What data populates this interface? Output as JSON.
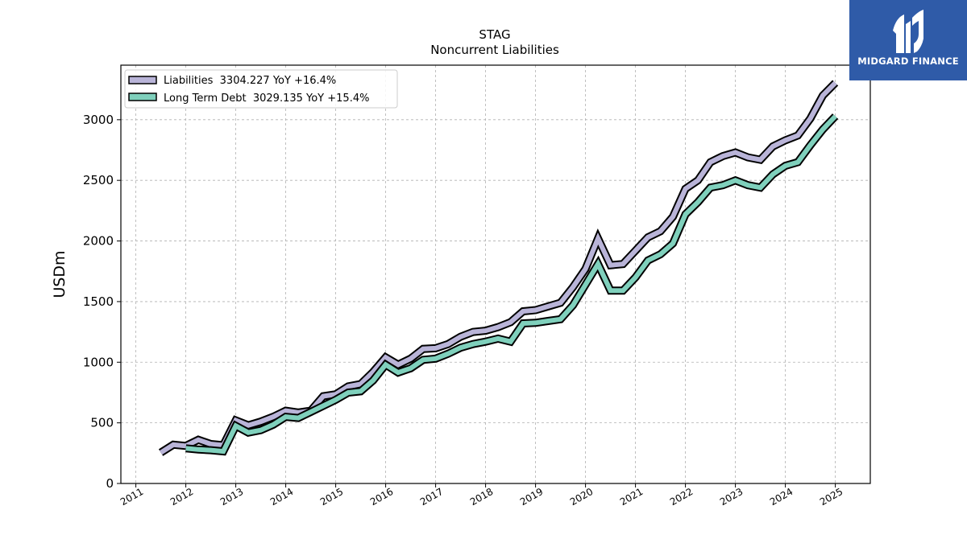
{
  "chart_data": {
    "type": "line",
    "title": "STAG",
    "subtitle": "Noncurrent  Liabilities",
    "ylabel": "USDm",
    "xlabel": "",
    "ylim": [
      0,
      3450
    ],
    "xlim": [
      2010.7,
      2025.7
    ],
    "yticks": [
      0,
      500,
      1000,
      1500,
      2000,
      2500,
      3000
    ],
    "yticklabels": [
      "0",
      "500",
      "1000",
      "1500",
      "2000",
      "2500",
      "3000"
    ],
    "xticks": [
      2011,
      2012,
      2013,
      2014,
      2015,
      2016,
      2017,
      2018,
      2019,
      2020,
      2021,
      2022,
      2023,
      2024,
      2025
    ],
    "xticklabels": [
      "2011",
      "2012",
      "2013",
      "2014",
      "2015",
      "2016",
      "2017",
      "2018",
      "2019",
      "2020",
      "2021",
      "2022",
      "2023",
      "2024",
      "2025"
    ],
    "grid": true,
    "legend_position": "upper-left",
    "series": [
      {
        "name": "Liabilities  3304.227 YoY +16.4%",
        "color": "#b9b4d8",
        "x": [
          2011.5,
          2011.75,
          2012.0,
          2012.25,
          2012.5,
          2012.75,
          2013.0,
          2013.25,
          2013.5,
          2013.75,
          2014.0,
          2014.25,
          2014.5,
          2014.75,
          2015.0,
          2015.25,
          2015.5,
          2015.75,
          2016.0,
          2016.25,
          2016.5,
          2016.75,
          2017.0,
          2017.25,
          2017.5,
          2017.75,
          2018.0,
          2018.25,
          2018.5,
          2018.75,
          2019.0,
          2019.25,
          2019.5,
          2019.75,
          2020.0,
          2020.25,
          2020.5,
          2020.75,
          2021.0,
          2021.25,
          2021.5,
          2021.75,
          2022.0,
          2022.25,
          2022.5,
          2022.75,
          2023.0,
          2023.25,
          2023.5,
          2023.75,
          2024.0,
          2024.25,
          2024.5,
          2024.75,
          2025.0
        ],
        "values": [
          255,
          320,
          310,
          360,
          325,
          315,
          520,
          480,
          510,
          550,
          600,
          585,
          600,
          720,
          735,
          800,
          820,
          920,
          1040,
          980,
          1030,
          1110,
          1115,
          1150,
          1210,
          1250,
          1260,
          1290,
          1330,
          1420,
          1430,
          1460,
          1490,
          1620,
          1770,
          2020,
          1800,
          1810,
          1920,
          2030,
          2080,
          2200,
          2430,
          2500,
          2650,
          2700,
          2730,
          2690,
          2670,
          2780,
          2830,
          2870,
          3010,
          3200,
          3304
        ]
      },
      {
        "name": "Long Term Debt  3029.135 YoY +15.4%",
        "color": "#7fd0bc",
        "x": [
          2012.0,
          2012.25,
          2012.5,
          2012.75,
          2013.0,
          2013.25,
          2013.5,
          2013.75,
          2014.0,
          2014.25,
          2014.5,
          2014.75,
          2015.0,
          2015.25,
          2015.5,
          2015.75,
          2016.0,
          2016.25,
          2016.5,
          2016.75,
          2017.0,
          2017.25,
          2017.5,
          2017.75,
          2018.0,
          2018.25,
          2018.5,
          2018.75,
          2019.0,
          2019.25,
          2019.5,
          2019.75,
          2020.0,
          2020.25,
          2020.5,
          2020.75,
          2021.0,
          2021.25,
          2021.5,
          2021.75,
          2022.0,
          2022.25,
          2022.5,
          2022.75,
          2023.0,
          2023.25,
          2023.5,
          2023.75,
          2024.0,
          2024.25,
          2024.5,
          2024.75,
          2025.0
        ],
        "values": [
          290,
          280,
          275,
          265,
          475,
          420,
          440,
          485,
          550,
          540,
          590,
          640,
          690,
          750,
          760,
          850,
          980,
          915,
          950,
          1020,
          1030,
          1070,
          1120,
          1150,
          1170,
          1195,
          1170,
          1320,
          1325,
          1340,
          1355,
          1470,
          1640,
          1810,
          1590,
          1590,
          1700,
          1840,
          1890,
          1980,
          2220,
          2320,
          2440,
          2460,
          2500,
          2460,
          2440,
          2550,
          2620,
          2650,
          2790,
          2920,
          3029
        ]
      }
    ]
  },
  "logo": {
    "text": "MIDGARD FINANCE",
    "background": "#2f5ba8"
  }
}
